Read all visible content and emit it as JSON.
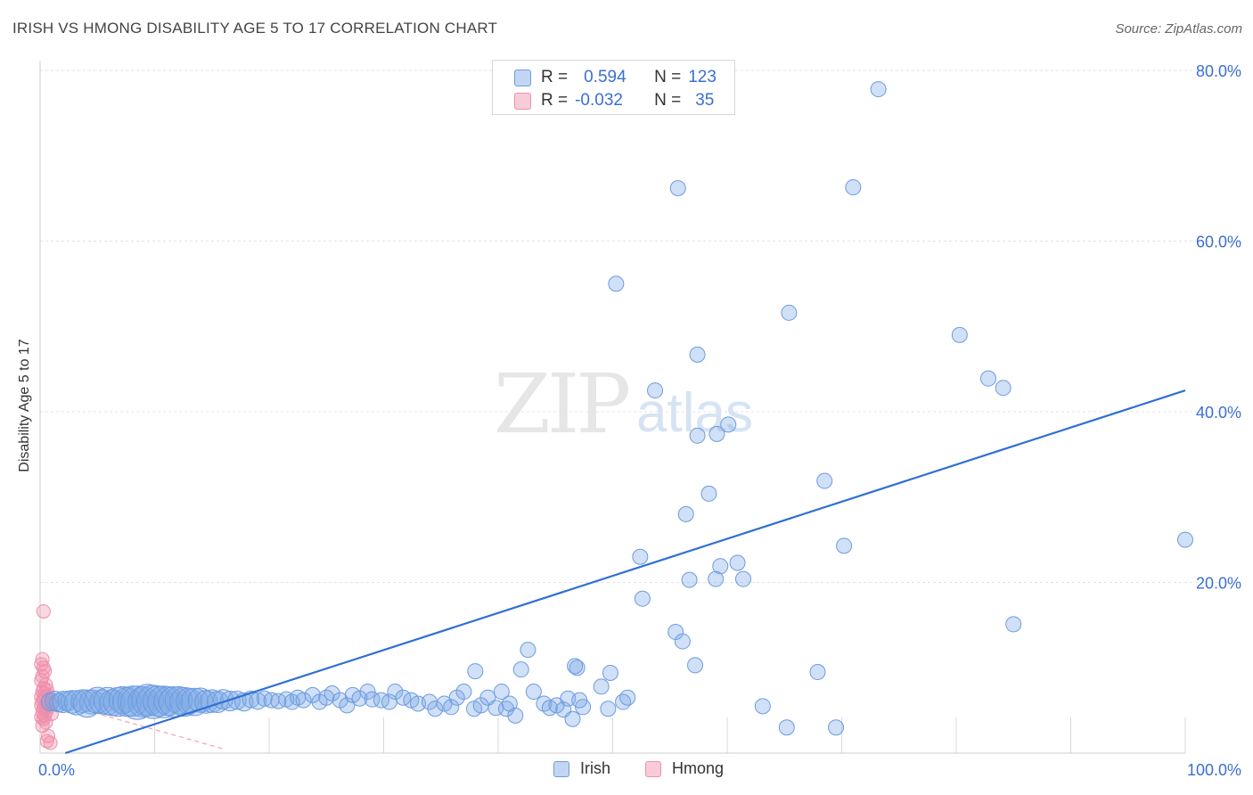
{
  "title": "IRISH VS HMONG DISABILITY AGE 5 TO 17 CORRELATION CHART",
  "source": "Source: ZipAtlas.com",
  "watermark": {
    "zip": "ZIP",
    "atlas": "atlas"
  },
  "colors": {
    "irish_fill": "rgba(120,165,230,0.35)",
    "irish_stroke": "#6d9be0",
    "irish_line": "#2f6fd4",
    "hmong_fill": "rgba(240,140,170,0.35)",
    "hmong_stroke": "#ee8fac",
    "hmong_line": "#f0a0b8",
    "tick_label": "#3b6fd1",
    "grid": "#e3e3e3"
  },
  "legend_top": {
    "rows": [
      {
        "r_label": "R =",
        "r_value": "0.594",
        "n_label": "N =",
        "n_value": "123"
      },
      {
        "r_label": "R =",
        "r_value": "-0.032",
        "n_label": "N =",
        "n_value": "35"
      }
    ]
  },
  "legend_bottom": {
    "irish": "Irish",
    "hmong": "Hmong"
  },
  "chart_data": {
    "type": "scatter",
    "title": "IRISH VS HMONG DISABILITY AGE 5 TO 17 CORRELATION CHART",
    "xlabel": "",
    "ylabel": "Disability Age 5 to 17",
    "xlim": [
      0,
      100
    ],
    "ylim": [
      0,
      82
    ],
    "x_tick_labels": [
      {
        "value": 0,
        "label": "0.0%"
      },
      {
        "value": 100,
        "label": "100.0%"
      }
    ],
    "y_tick_labels": [
      {
        "value": 20,
        "label": "20.0%"
      },
      {
        "value": 40,
        "label": "40.0%"
      },
      {
        "value": 60,
        "label": "60.0%"
      },
      {
        "value": 80,
        "label": "80.0%"
      }
    ],
    "x_gridlines": [
      10,
      20,
      30,
      40,
      50,
      60,
      70,
      80,
      90,
      100
    ],
    "y_gridlines": [
      20,
      40,
      60,
      80
    ],
    "series": [
      {
        "name": "Irish",
        "r": 0.594,
        "n": 123,
        "trend": {
          "x": [
            2.2,
            100
          ],
          "y": [
            0,
            42.5
          ]
        },
        "points": [
          [
            0.9,
            6.0,
            1.2
          ],
          [
            1.3,
            6.1,
            1.3
          ],
          [
            1.6,
            5.9,
            1.2
          ],
          [
            2.0,
            6.0,
            1.4
          ],
          [
            2.4,
            6.1,
            1.3
          ],
          [
            2.8,
            6.0,
            1.5
          ],
          [
            3.2,
            5.9,
            1.6
          ],
          [
            3.7,
            6.1,
            1.5
          ],
          [
            4.1,
            5.8,
            1.8
          ],
          [
            4.5,
            6.0,
            1.6
          ],
          [
            5.0,
            6.2,
            1.7
          ],
          [
            5.4,
            6.0,
            1.6
          ],
          [
            5.9,
            6.1,
            1.8
          ],
          [
            6.3,
            5.9,
            1.7
          ],
          [
            6.8,
            6.0,
            1.9
          ],
          [
            7.2,
            6.2,
            1.8
          ],
          [
            7.6,
            6.0,
            1.9
          ],
          [
            8.1,
            6.1,
            2.0
          ],
          [
            8.5,
            5.9,
            2.2
          ],
          [
            9.0,
            6.0,
            2.0
          ],
          [
            9.4,
            6.2,
            2.1
          ],
          [
            9.9,
            6.0,
            2.2
          ],
          [
            10.3,
            6.1,
            2.0
          ],
          [
            10.8,
            6.0,
            2.1
          ],
          [
            11.2,
            6.1,
            1.9
          ],
          [
            11.7,
            6.0,
            2.0
          ],
          [
            12.1,
            6.2,
            1.8
          ],
          [
            12.6,
            6.0,
            1.9
          ],
          [
            13.0,
            6.1,
            1.7
          ],
          [
            13.5,
            6.0,
            1.8
          ],
          [
            14.0,
            6.2,
            1.6
          ],
          [
            14.5,
            6.0,
            1.5
          ],
          [
            15.0,
            6.1,
            1.5
          ],
          [
            15.5,
            6.0,
            1.4
          ],
          [
            16.0,
            6.3,
            1.3
          ],
          [
            16.6,
            6.1,
            1.3
          ],
          [
            17.2,
            6.2,
            1.2
          ],
          [
            17.8,
            6.0,
            1.2
          ],
          [
            18.4,
            6.3,
            1.1
          ],
          [
            19.0,
            6.1,
            1.1
          ],
          [
            19.6,
            6.4,
            1.0
          ],
          [
            20.2,
            6.2,
            1.0
          ],
          [
            20.8,
            6.1,
            1.0
          ],
          [
            21.5,
            6.3,
            1.0
          ],
          [
            22.0,
            6.0,
            1.0
          ],
          [
            22.5,
            6.5,
            1.0
          ],
          [
            23.0,
            6.2,
            1.0
          ],
          [
            23.8,
            6.8,
            1.0
          ],
          [
            24.4,
            6.0,
            1.0
          ],
          [
            25.0,
            6.5,
            1.0
          ],
          [
            25.5,
            7.0,
            1.0
          ],
          [
            26.2,
            6.2,
            1.0
          ],
          [
            26.8,
            5.6,
            1.0
          ],
          [
            27.3,
            6.8,
            1.0
          ],
          [
            27.9,
            6.4,
            1.0
          ],
          [
            28.6,
            7.2,
            1.0
          ],
          [
            29.0,
            6.3,
            1.0
          ],
          [
            29.8,
            6.2,
            1.0
          ],
          [
            30.5,
            6.0,
            1.0
          ],
          [
            31.0,
            7.2,
            1.0
          ],
          [
            31.7,
            6.5,
            1.0
          ],
          [
            32.4,
            6.2,
            1.0
          ],
          [
            33.0,
            5.8,
            1.0
          ],
          [
            34.0,
            6.0,
            1.0
          ],
          [
            34.5,
            5.2,
            1.0
          ],
          [
            35.3,
            5.8,
            1.0
          ],
          [
            35.9,
            5.4,
            1.0
          ],
          [
            36.4,
            6.5,
            1.0
          ],
          [
            37.0,
            7.2,
            1.0
          ],
          [
            37.9,
            5.2,
            1.0
          ],
          [
            38.5,
            5.6,
            1.0
          ],
          [
            39.1,
            6.5,
            1.0
          ],
          [
            39.8,
            5.3,
            1.0
          ],
          [
            40.3,
            7.2,
            1.0
          ],
          [
            40.7,
            5.2,
            1.0
          ],
          [
            41.5,
            4.4,
            1.0
          ],
          [
            41.0,
            5.8,
            1.0
          ],
          [
            43.1,
            7.2,
            1.0
          ],
          [
            44.0,
            5.8,
            1.0
          ],
          [
            44.5,
            5.3,
            1.0
          ],
          [
            45.1,
            5.6,
            1.0
          ],
          [
            45.7,
            5.1,
            1.0
          ],
          [
            46.1,
            6.4,
            1.0
          ],
          [
            46.5,
            4.0,
            1.0
          ],
          [
            47.4,
            5.4,
            1.0
          ],
          [
            47.1,
            6.2,
            1.0
          ],
          [
            49.0,
            7.8,
            1.0
          ],
          [
            49.6,
            5.2,
            1.0
          ],
          [
            50.9,
            6.0,
            1.0
          ],
          [
            51.3,
            6.5,
            1.0
          ],
          [
            49.8,
            9.4,
            1.0
          ],
          [
            46.9,
            10.0,
            1.0
          ],
          [
            46.7,
            10.2,
            1.0
          ],
          [
            42.0,
            9.8,
            1.0
          ],
          [
            42.6,
            12.1,
            1.0
          ],
          [
            38.0,
            9.6,
            1.0
          ],
          [
            57.2,
            10.3,
            1.0
          ],
          [
            56.1,
            13.1,
            1.0
          ],
          [
            55.5,
            14.2,
            1.0
          ],
          [
            52.6,
            18.1,
            1.0
          ],
          [
            52.4,
            23.0,
            1.0
          ],
          [
            56.4,
            28.0,
            1.0
          ],
          [
            56.7,
            20.3,
            1.0
          ],
          [
            59.0,
            20.4,
            1.0
          ],
          [
            58.4,
            30.4,
            1.0
          ],
          [
            57.4,
            37.2,
            1.0
          ],
          [
            59.1,
            37.4,
            1.0
          ],
          [
            60.1,
            38.5,
            1.0
          ],
          [
            53.7,
            42.5,
            1.0
          ],
          [
            57.4,
            46.7,
            1.0
          ],
          [
            55.7,
            66.2,
            1.0
          ],
          [
            50.3,
            55.0,
            1.0
          ],
          [
            65.4,
            51.6,
            1.0
          ],
          [
            60.9,
            22.3,
            1.0
          ],
          [
            59.4,
            21.9,
            1.0
          ],
          [
            61.4,
            20.4,
            1.0
          ],
          [
            68.5,
            31.9,
            1.0
          ],
          [
            70.2,
            24.3,
            1.0
          ],
          [
            63.1,
            5.5,
            1.0
          ],
          [
            65.2,
            3.0,
            1.0
          ],
          [
            67.9,
            9.5,
            1.0
          ],
          [
            69.5,
            3.0,
            1.0
          ],
          [
            71.0,
            66.3,
            1.0
          ],
          [
            73.2,
            77.8,
            1.0
          ],
          [
            80.3,
            49.0,
            1.0
          ],
          [
            82.8,
            43.9,
            1.0
          ],
          [
            84.1,
            42.8,
            1.0
          ],
          [
            85.0,
            15.1,
            1.0
          ],
          [
            100.0,
            25.0,
            1.0
          ]
        ]
      },
      {
        "name": "Hmong",
        "r": -0.032,
        "n": 35,
        "trend": {
          "x": [
            0,
            16
          ],
          "y": [
            6.5,
            0.5
          ]
        },
        "points": [
          [
            0.3,
            16.6
          ],
          [
            0.2,
            11.0
          ],
          [
            0.3,
            10.0
          ],
          [
            0.1,
            10.4
          ],
          [
            0.4,
            9.6
          ],
          [
            0.2,
            9.0
          ],
          [
            0.1,
            8.5
          ],
          [
            0.5,
            8.0
          ],
          [
            0.3,
            7.6
          ],
          [
            0.6,
            7.4
          ],
          [
            0.2,
            7.2
          ],
          [
            0.4,
            7.0
          ],
          [
            0.7,
            6.8
          ],
          [
            0.1,
            6.6
          ],
          [
            0.3,
            6.4
          ],
          [
            0.8,
            6.2
          ],
          [
            0.2,
            6.0
          ],
          [
            0.5,
            5.9
          ],
          [
            0.9,
            5.8
          ],
          [
            0.1,
            5.6
          ],
          [
            0.4,
            5.5
          ],
          [
            0.7,
            5.4
          ],
          [
            0.3,
            5.2
          ],
          [
            0.6,
            5.0
          ],
          [
            0.2,
            4.8
          ],
          [
            1.0,
            4.6
          ],
          [
            0.4,
            4.4
          ],
          [
            0.1,
            4.2
          ],
          [
            0.3,
            4.0
          ],
          [
            0.5,
            3.6
          ],
          [
            0.2,
            3.2
          ],
          [
            0.7,
            2.0
          ],
          [
            0.6,
            1.4
          ],
          [
            0.9,
            1.2
          ],
          [
            0.5,
            6.6
          ]
        ]
      }
    ]
  }
}
